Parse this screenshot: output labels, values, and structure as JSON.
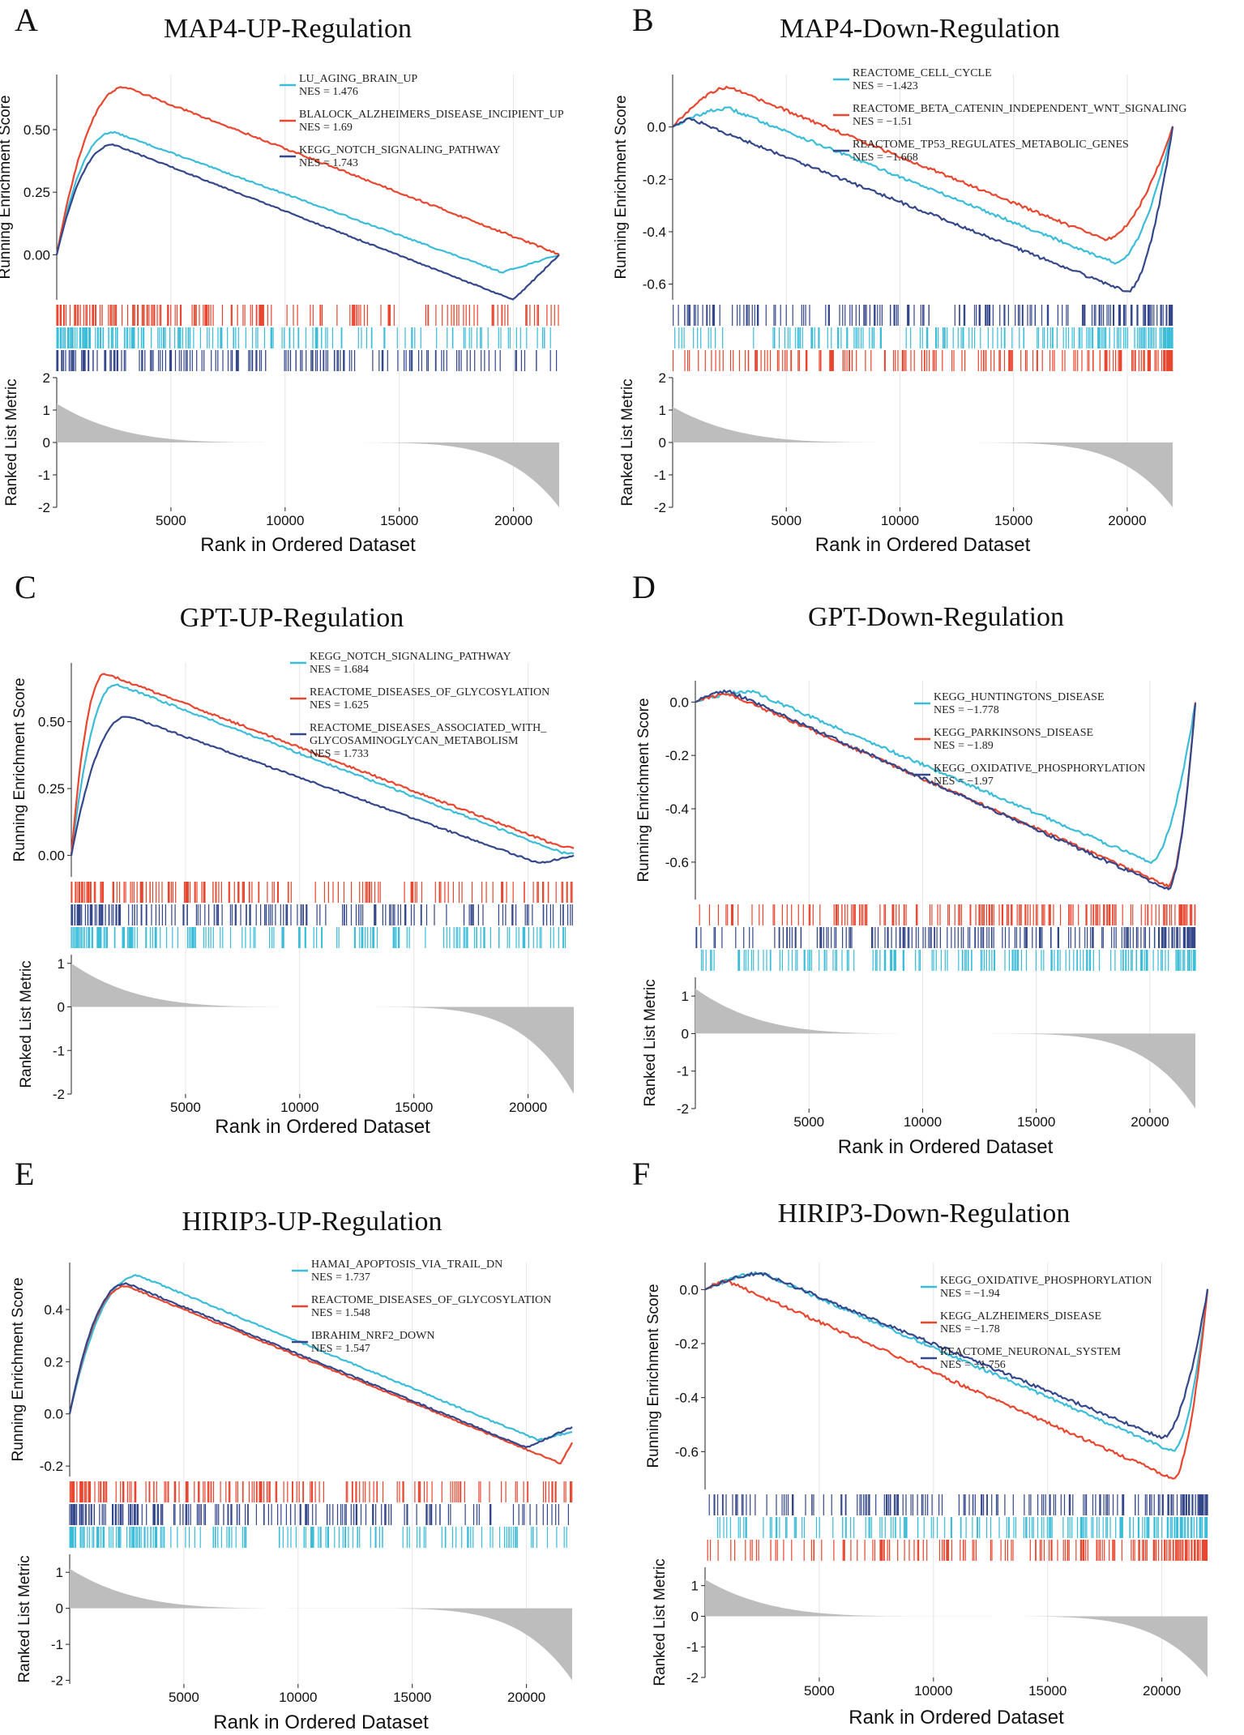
{
  "colors": {
    "cyan": "#3bbcd9",
    "red": "#e8462f",
    "navy": "#34478a",
    "area": "#bdbdbd"
  },
  "common": {
    "ylabel_res": "Running Enrichment Score",
    "ylabel_rlm": "Ranked List Metric",
    "xlabel": "Rank in Ordered Dataset",
    "xticks": [
      "5000",
      "10000",
      "15000",
      "20000"
    ],
    "x_range": [
      0,
      22000
    ]
  },
  "chart_data": [
    {
      "id": "A",
      "type": "line",
      "title": "MAP4-UP-Regulation",
      "direction": "up",
      "ylim": [
        -0.18,
        0.72
      ],
      "yticks": [
        "0.50",
        "0.25",
        "0.00"
      ],
      "ytick_values": [
        0.5,
        0.25,
        0
      ],
      "series": [
        {
          "name": "LU_AGING_BRAIN_UP",
          "nes": "NES = 1.476",
          "color": "cyan",
          "peak_rank": 2500,
          "peak": 0.49,
          "min_rank": 19500,
          "min": -0.07,
          "end": 0.0
        },
        {
          "name": "BLALOCK_ALZHEIMERS_DISEASE_INCIPIENT_UP",
          "nes": "NES = 1.69",
          "color": "red",
          "peak_rank": 3000,
          "peak": 0.67,
          "min_rank": 21500,
          "min": 0.02,
          "end": 0.0
        },
        {
          "name": "KEGG_NOTCH_SIGNALING_PATHWAY",
          "nes": "NES = 1.743",
          "color": "navy",
          "peak_rank": 2500,
          "peak": 0.44,
          "min_rank": 20000,
          "min": -0.18,
          "end": 0.0
        }
      ],
      "rlm": {
        "ylim": [
          -2,
          2
        ],
        "yticks": [
          "2",
          "1",
          "0",
          "-1",
          "-2"
        ],
        "ytick_values": [
          2,
          1,
          0,
          -1,
          -2
        ],
        "max": 1.2,
        "min": -2.0
      }
    },
    {
      "id": "B",
      "type": "line",
      "title": "MAP4-Down-Regulation",
      "direction": "down",
      "ylim": [
        -0.66,
        0.2
      ],
      "yticks": [
        "0.0",
        "-0.2",
        "-0.4",
        "-0.6"
      ],
      "ytick_values": [
        0,
        -0.2,
        -0.4,
        -0.6
      ],
      "series": [
        {
          "name": "REACTOME_CELL_CYCLE",
          "nes": "NES = −1.423",
          "color": "cyan",
          "peak_rank": 2500,
          "peak": 0.07,
          "min_rank": 19500,
          "min": -0.52,
          "end": 0.0
        },
        {
          "name": "REACTOME_BETA_CATENIN_INDEPENDENT_WNT_SIGNALING",
          "nes": "NES = −1.51",
          "color": "red",
          "peak_rank": 2500,
          "peak": 0.15,
          "min_rank": 19000,
          "min": -0.43,
          "end": 0.0
        },
        {
          "name": "REACTOME_TP53_REGULATES_METABOLIC_GENES",
          "nes": "NES = −1.668",
          "color": "navy",
          "peak_rank": 800,
          "peak": 0.03,
          "min_rank": 20000,
          "min": -0.63,
          "end": 0.0
        }
      ],
      "rlm": {
        "ylim": [
          -2,
          2
        ],
        "yticks": [
          "2",
          "1",
          "0",
          "-1",
          "-2"
        ],
        "ytick_values": [
          2,
          1,
          0,
          -1,
          -2
        ],
        "max": 1.1,
        "min": -2.0
      }
    },
    {
      "id": "C",
      "type": "line",
      "title": "GPT-UP-Regulation",
      "direction": "up",
      "ylim": [
        -0.08,
        0.72
      ],
      "yticks": [
        "0.50",
        "0.25",
        "0.00"
      ],
      "ytick_values": [
        0.5,
        0.25,
        0
      ],
      "series": [
        {
          "name": "KEGG_NOTCH_SIGNALING_PATHWAY",
          "nes": "NES = 1.684",
          "color": "cyan",
          "peak_rank": 2000,
          "peak": 0.64,
          "min_rank": 21500,
          "min": 0.01,
          "end": 0.01
        },
        {
          "name": "REACTOME_DISEASES_OF_GLYCOSYLATION",
          "nes": "NES = 1.625",
          "color": "red",
          "peak_rank": 1500,
          "peak": 0.68,
          "min_rank": 21500,
          "min": 0.03,
          "end": 0.03
        },
        {
          "name": "REACTOME_DISEASES_ASSOCIATED_WITH_",
          "name2": "GLYCOSAMINOGLYCAN_METABOLISM",
          "nes": "NES = 1.733",
          "color": "navy",
          "peak_rank": 2500,
          "peak": 0.52,
          "min_rank": 20500,
          "min": -0.03,
          "end": 0.0
        }
      ],
      "rlm": {
        "ylim": [
          -2,
          1.2
        ],
        "yticks": [
          "1",
          "0",
          "-1",
          "-2"
        ],
        "ytick_values": [
          1,
          0,
          -1,
          -2
        ],
        "max": 1.0,
        "min": -2.0
      }
    },
    {
      "id": "D",
      "type": "line",
      "title": "GPT-Down-Regulation",
      "direction": "down",
      "ylim": [
        -0.74,
        0.08
      ],
      "yticks": [
        "0.0",
        "-0.2",
        "-0.4",
        "-0.6"
      ],
      "ytick_values": [
        0,
        -0.2,
        -0.4,
        -0.6
      ],
      "series": [
        {
          "name": "KEGG_HUNTINGTONS_DISEASE",
          "nes": "NES = −1.778",
          "color": "cyan",
          "peak_rank": 2500,
          "peak": 0.04,
          "min_rank": 20000,
          "min": -0.6,
          "end": 0.0
        },
        {
          "name": "KEGG_PARKINSONS_DISEASE",
          "nes": "NES = −1.89",
          "color": "red",
          "peak_rank": 1500,
          "peak": 0.03,
          "min_rank": 20800,
          "min": -0.69,
          "end": 0.0
        },
        {
          "name": "KEGG_OXIDATIVE_PHOSPHORYLATION",
          "nes": "NES = −1.97",
          "color": "navy",
          "peak_rank": 1500,
          "peak": 0.04,
          "min_rank": 20800,
          "min": -0.7,
          "end": 0.0
        }
      ],
      "rlm": {
        "ylim": [
          -2,
          1.5
        ],
        "yticks": [
          "1",
          "0",
          "-1",
          "-2"
        ],
        "ytick_values": [
          1,
          0,
          -1,
          -2
        ],
        "max": 1.2,
        "min": -2.0
      }
    },
    {
      "id": "E",
      "type": "line",
      "title": "HIRIP3-UP-Regulation",
      "direction": "up",
      "ylim": [
        -0.24,
        0.58
      ],
      "yticks": [
        "0.4",
        "0.2",
        "0.0",
        "-0.2"
      ],
      "ytick_values": [
        0.4,
        0.2,
        0,
        -0.2
      ],
      "series": [
        {
          "name": "HAMAI_APOPTOSIS_VIA_TRAIL_DN",
          "nes": "NES = 1.737",
          "color": "cyan",
          "peak_rank": 3000,
          "peak": 0.53,
          "min_rank": 20500,
          "min": -0.1,
          "end": -0.07
        },
        {
          "name": "REACTOME_DISEASES_OF_GLYCOSYLATION",
          "nes": "NES = 1.548",
          "color": "red",
          "peak_rank": 2500,
          "peak": 0.49,
          "min_rank": 21500,
          "min": -0.19,
          "end": -0.11
        },
        {
          "name": "IBRAHIM_NRF2_DOWN",
          "nes": "NES = 1.547",
          "color": "navy",
          "peak_rank": 2500,
          "peak": 0.5,
          "min_rank": 20000,
          "min": -0.13,
          "end": -0.05
        }
      ],
      "rlm": {
        "ylim": [
          -2.1,
          1.5
        ],
        "yticks": [
          "1",
          "0",
          "-1",
          "-2"
        ],
        "ytick_values": [
          1,
          0,
          -1,
          -2
        ],
        "max": 1.1,
        "min": -2.0
      }
    },
    {
      "id": "F",
      "type": "line",
      "title": "HIRIP3-Down-Regulation",
      "direction": "down",
      "ylim": [
        -0.74,
        0.1
      ],
      "yticks": [
        "0.0",
        "-0.2",
        "-0.4",
        "-0.6"
      ],
      "ytick_values": [
        0,
        -0.2,
        -0.4,
        -0.6
      ],
      "series": [
        {
          "name": "KEGG_OXIDATIVE_PHOSPHORYLATION",
          "nes": "NES = −1.94",
          "color": "cyan",
          "peak_rank": 2500,
          "peak": 0.06,
          "min_rank": 20500,
          "min": -0.6,
          "end": 0.0
        },
        {
          "name": "KEGG_ALZHEIMERS_DISEASE",
          "nes": "NES = −1.78",
          "color": "red",
          "peak_rank": 1000,
          "peak": 0.03,
          "min_rank": 20500,
          "min": -0.7,
          "end": 0.0
        },
        {
          "name": "REACTOME_NEURONAL_SYSTEM",
          "nes": "NES = −1.756",
          "color": "navy",
          "peak_rank": 2500,
          "peak": 0.06,
          "min_rank": 20000,
          "min": -0.55,
          "end": 0.0
        }
      ],
      "rlm": {
        "ylim": [
          -2,
          1.6
        ],
        "yticks": [
          "1",
          "0",
          "-1",
          "-2"
        ],
        "ytick_values": [
          1,
          0,
          -1,
          -2
        ],
        "max": 1.2,
        "min": -2.0
      }
    }
  ]
}
